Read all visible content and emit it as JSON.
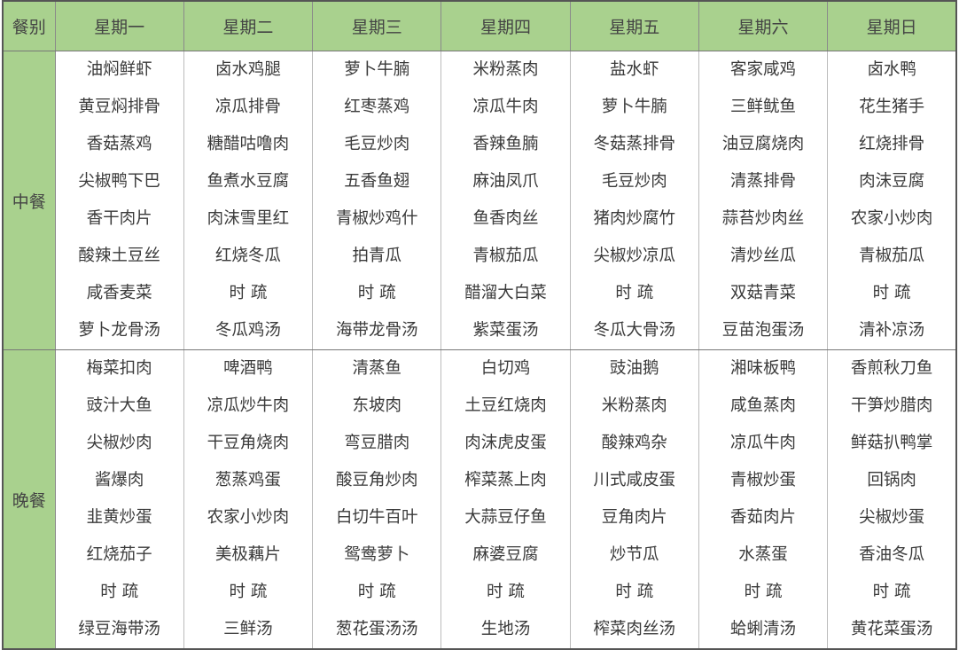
{
  "header": {
    "meal_label": "餐别",
    "days": [
      "星期一",
      "星期二",
      "星期三",
      "星期四",
      "星期五",
      "星期六",
      "星期日"
    ]
  },
  "colors": {
    "header_bg": "#a9d18e",
    "text": "#3a3a3a"
  },
  "meals": [
    {
      "label": "中餐",
      "days": [
        [
          "油焖鲜虾",
          "黄豆焖排骨",
          "香菇蒸鸡",
          "尖椒鸭下巴",
          "香干肉片",
          "酸辣土豆丝",
          "咸香麦菜",
          "萝卜龙骨汤"
        ],
        [
          "卤水鸡腿",
          "凉瓜排骨",
          "糖醋咕噜肉",
          "鱼煮水豆腐",
          "肉沫雪里红",
          "红烧冬瓜",
          "时 疏",
          "冬瓜鸡汤"
        ],
        [
          "萝卜牛腩",
          "红枣蒸鸡",
          "毛豆炒肉",
          "五香鱼翅",
          "青椒炒鸡什",
          "拍青瓜",
          "时 疏",
          "海带龙骨汤"
        ],
        [
          "米粉蒸肉",
          "凉瓜牛肉",
          "香辣鱼腩",
          "麻油凤爪",
          "鱼香肉丝",
          "青椒茄瓜",
          "醋溜大白菜",
          "紫菜蛋汤"
        ],
        [
          "盐水虾",
          "萝卜牛腩",
          "冬菇蒸排骨",
          "毛豆炒肉",
          "猪肉炒腐竹",
          "尖椒炒凉瓜",
          "时 疏",
          "冬瓜大骨汤"
        ],
        [
          "客家咸鸡",
          "三鲜鱿鱼",
          "油豆腐烧肉",
          "清蒸排骨",
          "蒜苔炒肉丝",
          "清炒丝瓜",
          "双菇青菜",
          "豆苗泡蛋汤"
        ],
        [
          "卤水鸭",
          "花生猪手",
          "红烧排骨",
          "肉沫豆腐",
          "农家小炒肉",
          "青椒茄瓜",
          "时 疏",
          "清补凉汤"
        ]
      ]
    },
    {
      "label": "晚餐",
      "days": [
        [
          "梅菜扣肉",
          "豉汁大鱼",
          "尖椒炒肉",
          "酱爆肉",
          "韭黄炒蛋",
          "红烧茄子",
          "时 疏",
          "绿豆海带汤"
        ],
        [
          "啤酒鸭",
          "凉瓜炒牛肉",
          "干豆角烧肉",
          "葱蒸鸡蛋",
          "农家小炒肉",
          "美极藕片",
          "时 疏",
          "三鲜汤"
        ],
        [
          "清蒸鱼",
          "东坡肉",
          "弯豆腊肉",
          "酸豆角炒肉",
          "白切牛百叶",
          "鸳鸯萝卜",
          "时 疏",
          "葱花蛋汤汤"
        ],
        [
          "白切鸡",
          "土豆红烧肉",
          "肉沫虎皮蛋",
          "榨菜蒸上肉",
          "大蒜豆仔鱼",
          "麻婆豆腐",
          "时 疏",
          "生地汤"
        ],
        [
          "豉油鹅",
          "米粉蒸肉",
          "酸辣鸡杂",
          "川式咸皮蛋",
          "豆角肉片",
          "炒节瓜",
          "时 疏",
          "榨菜肉丝汤"
        ],
        [
          "湘味板鸭",
          "咸鱼蒸肉",
          "凉瓜牛肉",
          "青椒炒蛋",
          "香茹肉片",
          "水蒸蛋",
          "时 疏",
          "蛤蜊清汤"
        ],
        [
          "香煎秋刀鱼",
          "干笋炒腊肉",
          "鲜菇扒鸭掌",
          "回锅肉",
          "尖椒炒蛋",
          "香油冬瓜",
          "时 疏",
          "黄花菜蛋汤"
        ]
      ]
    }
  ]
}
